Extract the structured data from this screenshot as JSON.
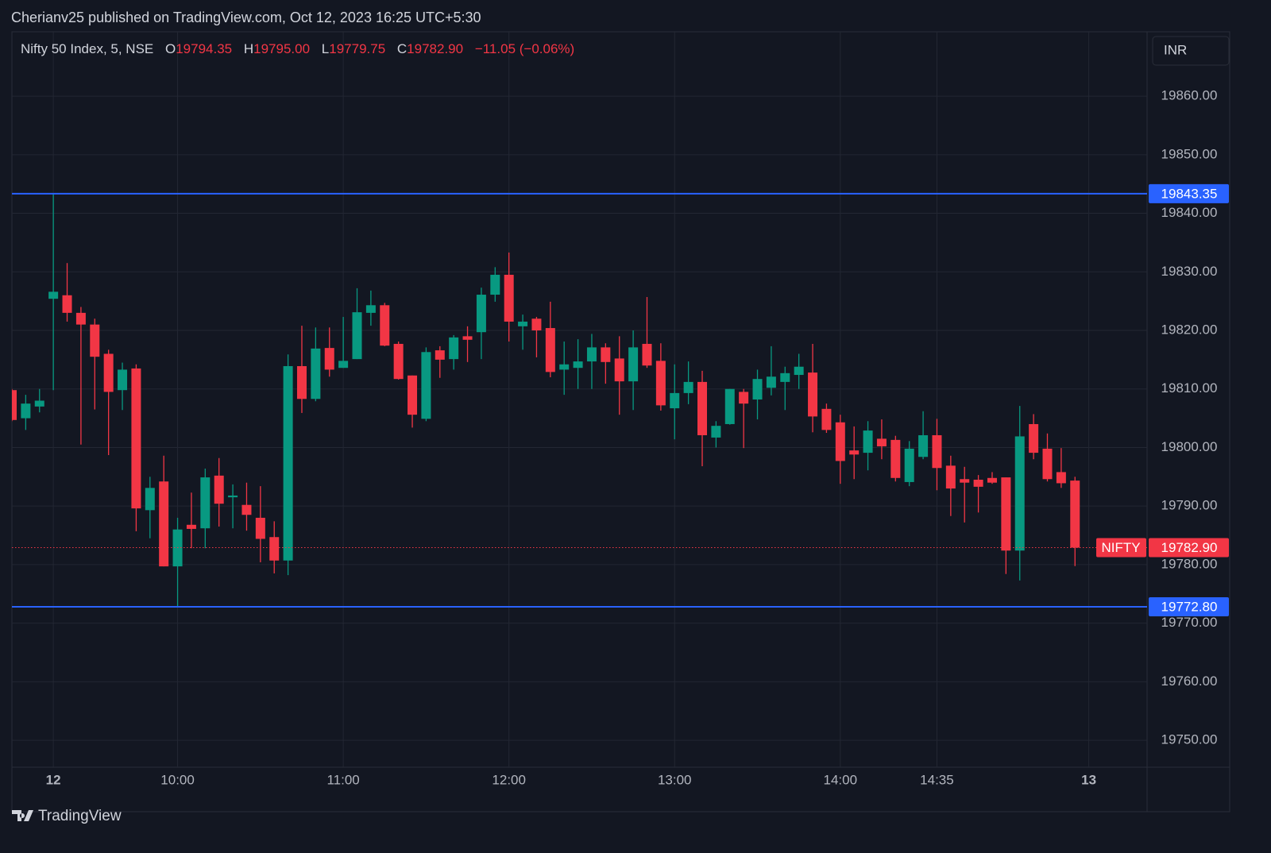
{
  "header": {
    "text": "Cherianv25 published on TradingView.com, Oct 12, 2023 16:25 UTC+5:30"
  },
  "legend": {
    "symbol": "Nifty 50 Index, 5, NSE",
    "items": [
      {
        "key": "O",
        "value": "19794.35"
      },
      {
        "key": "H",
        "value": "19795.00"
      },
      {
        "key": "L",
        "value": "19779.75"
      },
      {
        "key": "C",
        "value": "19782.90"
      }
    ],
    "change": "−11.05 (−0.06%)"
  },
  "currency": "INR",
  "footer": {
    "brand": "TradingView"
  },
  "chart_data": {
    "type": "candlestick",
    "up_color": "#089981",
    "down_color": "#f23645",
    "grid": true,
    "categories": [
      null,
      null,
      null,
      "12",
      null,
      null,
      null,
      null,
      null,
      null,
      null,
      null,
      "10:00",
      null,
      null,
      null,
      null,
      null,
      null,
      null,
      null,
      null,
      null,
      null,
      "11:00",
      null,
      null,
      null,
      null,
      null,
      null,
      null,
      null,
      null,
      null,
      null,
      "12:00",
      null,
      null,
      null,
      null,
      null,
      null,
      null,
      null,
      null,
      null,
      null,
      "13:00",
      null,
      null,
      null,
      null,
      null,
      null,
      null,
      null,
      null,
      null,
      null,
      "14:00",
      null,
      null,
      null,
      null,
      null,
      null,
      "14:35",
      null,
      null,
      null,
      null,
      null,
      null,
      null,
      null,
      null,
      null,
      "13"
    ],
    "open": [
      19809.8,
      19805,
      19807,
      19825.4,
      19826,
      19823,
      19821,
      19816,
      19809.8,
      19813.5,
      19789.3,
      19794.2,
      19779.7,
      19786.8,
      19786.2,
      19795.2,
      19791.5,
      19790.2,
      19788,
      19784.7,
      19780.7,
      19813.9,
      19808.3,
      19817,
      19813.6,
      19815.1,
      19823,
      19824.3,
      19817.7,
      19812.3,
      19804.9,
      19816.6,
      19815.1,
      19819,
      19819.7,
      19826.1,
      19829.5,
      19820.7,
      19822,
      19820.4,
      19813.3,
      19813.6,
      19814.7,
      19817.1,
      19815.2,
      19811.3,
      19817.7,
      19814.8,
      19806.7,
      19809.3,
      19811.2,
      19801.7,
      19804,
      19809.5,
      19808.2,
      19810.2,
      19811.2,
      19812.4,
      19812.8,
      19806.6,
      19804.3,
      19799.5,
      19799.1,
      19801.5,
      19801.3,
      19794.1,
      19798.4,
      19802.1,
      19796.9,
      19794.6,
      19794.5,
      19794.8,
      19794.9,
      19782.4,
      19804,
      19799.8,
      19795.8,
      19794.35,
      null
    ],
    "high": [
      19810,
      19809,
      19810,
      19843.35,
      19831.5,
      19824,
      19822,
      19816.7,
      19814.5,
      19814.2,
      19795,
      19798.6,
      19788,
      19792.3,
      19796.4,
      19798.2,
      19793.7,
      19794,
      19793.4,
      19787.4,
      19815.9,
      19820.8,
      19820.5,
      19820.5,
      19822.3,
      19827.2,
      19826.8,
      19824.7,
      19818.1,
      19812.3,
      19817.1,
      19817.3,
      19819.2,
      19820.7,
      19827.3,
      19830.8,
      19833.3,
      19822.7,
      19822.3,
      19824.9,
      19818.1,
      19818.5,
      19819.4,
      19817.8,
      19819,
      19820,
      19825.7,
      19817.8,
      19814.2,
      19814.7,
      19813.1,
      19804.5,
      19810,
      19810,
      19813.3,
      19817.3,
      19813.8,
      19816,
      19817.7,
      19807.5,
      19805.6,
      19803.6,
      19804.5,
      19804.8,
      19802,
      19801.1,
      19806.2,
      19804.9,
      19798.6,
      19796.7,
      19795.3,
      19795.8,
      19794.9,
      19807.1,
      19805.7,
      19802.4,
      19799.9,
      19795,
      null
    ],
    "low": [
      19804.5,
      19803,
      19806,
      19809.8,
      19821.5,
      19800.5,
      19806.5,
      19798.7,
      19806.4,
      19785.7,
      19784.5,
      19779.7,
      19772.8,
      19782.8,
      19782.8,
      19786.5,
      19786.2,
      19785.8,
      19780.4,
      19778.5,
      19778.2,
      19805.9,
      19807.9,
      19812.1,
      19813.6,
      19815.1,
      19820.8,
      19817.3,
      19811.6,
      19803.4,
      19804.5,
      19811.9,
      19813.3,
      19814.6,
      19815.1,
      19824.9,
      19818.1,
      19816.7,
      19815.4,
      19812,
      19809,
      19810,
      19810,
      19810.9,
      19805.6,
      19806.4,
      19813.6,
      19806.3,
      19801.4,
      19807.4,
      19796.8,
      19800,
      19803.9,
      19799.9,
      19804.8,
      19808.9,
      19806.4,
      19810,
      19802.6,
      19802.5,
      19793.8,
      19794.6,
      19796.1,
      19798,
      19794.2,
      19793.4,
      19798,
      19792.7,
      19788.3,
      19787.2,
      19788.9,
      19793.8,
      19778.4,
      19777.3,
      19798,
      19794.2,
      19793.1,
      19779.75,
      null
    ],
    "close": [
      19804.7,
      19807.5,
      19808,
      19826.6,
      19823,
      19821,
      19815.5,
      19809.5,
      19813.3,
      19789.6,
      19793.1,
      19779.7,
      19786,
      19786.1,
      19794.9,
      19790.4,
      19791.8,
      19788.5,
      19784.4,
      19780.7,
      19813.9,
      19808.3,
      19816.9,
      19813.3,
      19814.8,
      19823.1,
      19824.3,
      19817.4,
      19811.7,
      19805.6,
      19816.3,
      19815,
      19818.8,
      19818.4,
      19826.1,
      19829.5,
      19821.5,
      19821.5,
      19820,
      19812.9,
      19814.2,
      19814.7,
      19817.1,
      19814.6,
      19811.3,
      19817.1,
      19814,
      19807.2,
      19809.3,
      19811.2,
      19802.1,
      19803.7,
      19810,
      19807.5,
      19811.7,
      19812.1,
      19812.7,
      19813.8,
      19805.3,
      19803,
      19797.7,
      19798.8,
      19802.9,
      19800.2,
      19794.8,
      19799.8,
      19802.1,
      19796.5,
      19793,
      19794,
      19793.3,
      19794,
      19782.4,
      19801.9,
      19799.1,
      19794.6,
      19793.9,
      19782.9,
      null
    ],
    "ylim": [
      19745.4,
      19871
    ],
    "yticks": [
      {
        "value": 19750,
        "label": "19750.00"
      },
      {
        "value": 19760,
        "label": "19760.00"
      },
      {
        "value": 19770,
        "label": "19770.00"
      },
      {
        "value": 19780,
        "label": "19780.00"
      },
      {
        "value": 19790,
        "label": "19790.00"
      },
      {
        "value": 19800,
        "label": "19800.00"
      },
      {
        "value": 19810,
        "label": "19810.00"
      },
      {
        "value": 19820,
        "label": "19820.00"
      },
      {
        "value": 19830,
        "label": "19830.00"
      },
      {
        "value": 19840,
        "label": "19840.00"
      },
      {
        "value": 19850,
        "label": "19850.00"
      },
      {
        "value": 19860,
        "label": "19860.00"
      }
    ],
    "hlines": [
      {
        "value": 19843.35,
        "label": "19843.35",
        "color": "#2962ff"
      },
      {
        "value": 19772.8,
        "label": "19772.80",
        "color": "#2962ff"
      }
    ],
    "price_line": {
      "name": "NIFTY",
      "value": 19782.9,
      "label": "19782.90",
      "color": "#f23645"
    }
  }
}
